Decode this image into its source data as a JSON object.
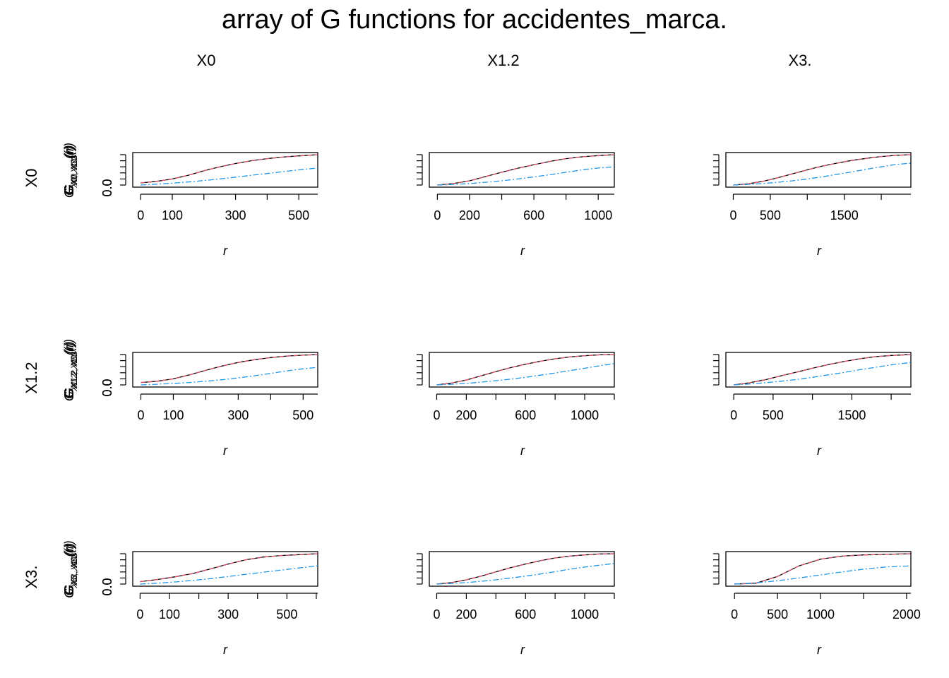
{
  "chart_data": {
    "type": "line",
    "title": "array of G functions for accidentes_marca.",
    "column_labels": [
      "X0",
      "X1.2",
      "X3."
    ],
    "row_labels": [
      "X0",
      "X1.2",
      "X3."
    ],
    "xlabel": "r",
    "y_tick_label": "0.0",
    "ylim": [
      0,
      1
    ],
    "series_styles": [
      {
        "key": "obs",
        "color": "#000000",
        "dash": ""
      },
      {
        "key": "theo",
        "color": "#df536b",
        "dash": "6,4"
      },
      {
        "key": "other",
        "color": "#2297e6",
        "dash": "8,3,2,3"
      }
    ],
    "panels": [
      {
        "row": 0,
        "col": 0,
        "ylabel_sub": "X0, X0",
        "xlim": [
          -25,
          560
        ],
        "xticks": [
          0,
          100,
          300,
          500
        ],
        "xtick_labels": [
          "0",
          "100",
          "300",
          "500"
        ],
        "x": [
          0,
          50,
          100,
          150,
          200,
          250,
          300,
          350,
          400,
          450,
          500,
          560
        ],
        "obs": [
          0.07,
          0.12,
          0.2,
          0.32,
          0.47,
          0.6,
          0.71,
          0.8,
          0.87,
          0.92,
          0.96,
          1.0
        ],
        "other": [
          0.0,
          0.03,
          0.06,
          0.1,
          0.15,
          0.2,
          0.26,
          0.32,
          0.38,
          0.44,
          0.5,
          0.56
        ]
      },
      {
        "row": 0,
        "col": 1,
        "ylabel_sub": "X0, X1.2",
        "xlim": [
          -50,
          1100
        ],
        "xticks": [
          0,
          200,
          600,
          1000
        ],
        "xtick_labels": [
          "0",
          "200",
          "600",
          "1000"
        ],
        "x": [
          0,
          100,
          200,
          300,
          400,
          500,
          600,
          700,
          800,
          900,
          1000,
          1100
        ],
        "obs": [
          0.0,
          0.05,
          0.14,
          0.28,
          0.42,
          0.55,
          0.67,
          0.78,
          0.87,
          0.93,
          0.97,
          1.0
        ],
        "other": [
          0.0,
          0.02,
          0.05,
          0.09,
          0.14,
          0.2,
          0.27,
          0.34,
          0.42,
          0.5,
          0.56,
          0.6
        ]
      },
      {
        "row": 0,
        "col": 2,
        "ylabel_sub": "X0, X3.",
        "xlim": [
          -100,
          2400
        ],
        "xticks": [
          0,
          500,
          1500
        ],
        "xtick_labels": [
          "0",
          "500",
          "1500"
        ],
        "x": [
          0,
          200,
          400,
          600,
          800,
          1000,
          1200,
          1400,
          1600,
          1800,
          2000,
          2200,
          2400
        ],
        "obs": [
          0.0,
          0.04,
          0.12,
          0.24,
          0.37,
          0.5,
          0.62,
          0.72,
          0.81,
          0.88,
          0.94,
          0.98,
          1.0
        ],
        "other": [
          0.0,
          0.02,
          0.05,
          0.09,
          0.14,
          0.2,
          0.27,
          0.35,
          0.43,
          0.52,
          0.6,
          0.68,
          0.72
        ]
      },
      {
        "row": 1,
        "col": 0,
        "ylabel_sub": "X1.2, X0",
        "xlim": [
          -25,
          545
        ],
        "xticks": [
          0,
          100,
          300,
          500
        ],
        "xtick_labels": [
          "0",
          "100",
          "300",
          "500"
        ],
        "x": [
          0,
          50,
          100,
          150,
          200,
          250,
          300,
          350,
          400,
          450,
          500,
          545
        ],
        "obs": [
          0.08,
          0.12,
          0.2,
          0.33,
          0.48,
          0.62,
          0.74,
          0.83,
          0.9,
          0.95,
          0.98,
          1.0
        ],
        "other": [
          0.0,
          0.02,
          0.05,
          0.08,
          0.12,
          0.17,
          0.23,
          0.3,
          0.38,
          0.46,
          0.53,
          0.58
        ]
      },
      {
        "row": 1,
        "col": 1,
        "ylabel_sub": "X1.2, X1.2",
        "xlim": [
          -50,
          1200
        ],
        "xticks": [
          0,
          200,
          600,
          1000
        ],
        "xtick_labels": [
          "0",
          "200",
          "600",
          "1000"
        ],
        "x": [
          0,
          100,
          200,
          300,
          400,
          500,
          600,
          700,
          800,
          900,
          1000,
          1100,
          1200
        ],
        "obs": [
          0.0,
          0.06,
          0.16,
          0.3,
          0.44,
          0.57,
          0.68,
          0.78,
          0.86,
          0.92,
          0.96,
          0.99,
          1.0
        ],
        "other": [
          0.0,
          0.02,
          0.05,
          0.09,
          0.14,
          0.19,
          0.25,
          0.32,
          0.39,
          0.47,
          0.55,
          0.63,
          0.7
        ]
      },
      {
        "row": 1,
        "col": 2,
        "ylabel_sub": "X1.2, X3.",
        "xlim": [
          -100,
          2250
        ],
        "xticks": [
          0,
          500,
          1500
        ],
        "xtick_labels": [
          "0",
          "500",
          "1500"
        ],
        "x": [
          0,
          200,
          400,
          600,
          800,
          1000,
          1200,
          1400,
          1600,
          1800,
          2000,
          2250
        ],
        "obs": [
          0.0,
          0.07,
          0.17,
          0.3,
          0.42,
          0.55,
          0.67,
          0.77,
          0.86,
          0.93,
          0.97,
          1.0
        ],
        "other": [
          0.0,
          0.03,
          0.07,
          0.12,
          0.18,
          0.25,
          0.33,
          0.41,
          0.5,
          0.58,
          0.66,
          0.74
        ]
      },
      {
        "row": 2,
        "col": 0,
        "ylabel_sub": "X3., X0",
        "xlim": [
          -25,
          605
        ],
        "xticks": [
          0,
          100,
          300,
          500
        ],
        "xtick_labels": [
          "0",
          "100",
          "300",
          "500"
        ],
        "x": [
          0,
          60,
          120,
          180,
          240,
          300,
          360,
          420,
          480,
          540,
          605
        ],
        "obs": [
          0.08,
          0.15,
          0.24,
          0.35,
          0.5,
          0.66,
          0.8,
          0.89,
          0.94,
          0.97,
          1.0
        ],
        "other": [
          0.0,
          0.03,
          0.07,
          0.12,
          0.18,
          0.25,
          0.32,
          0.39,
          0.46,
          0.53,
          0.6
        ]
      },
      {
        "row": 2,
        "col": 1,
        "ylabel_sub": "X3., X1.2",
        "xlim": [
          -50,
          1200
        ],
        "xticks": [
          0,
          200,
          600,
          1000
        ],
        "xtick_labels": [
          "0",
          "200",
          "600",
          "1000"
        ],
        "x": [
          0,
          100,
          200,
          300,
          400,
          500,
          600,
          700,
          800,
          900,
          1000,
          1100,
          1200
        ],
        "obs": [
          0.0,
          0.05,
          0.14,
          0.26,
          0.4,
          0.54,
          0.66,
          0.77,
          0.86,
          0.92,
          0.96,
          0.99,
          1.0
        ],
        "other": [
          0.0,
          0.02,
          0.05,
          0.09,
          0.14,
          0.2,
          0.26,
          0.33,
          0.41,
          0.49,
          0.56,
          0.62,
          0.68
        ]
      },
      {
        "row": 2,
        "col": 2,
        "ylabel_sub": "X3., X3.",
        "xlim": [
          -100,
          2050
        ],
        "xticks": [
          0,
          500,
          1000,
          2000
        ],
        "xtick_labels": [
          "0",
          "500",
          "1000",
          "2000"
        ],
        "x": [
          0,
          250,
          500,
          750,
          1000,
          1250,
          1500,
          1750,
          2050
        ],
        "obs": [
          0.0,
          0.03,
          0.25,
          0.6,
          0.82,
          0.92,
          0.96,
          0.98,
          1.0
        ],
        "other": [
          0.0,
          0.04,
          0.11,
          0.2,
          0.3,
          0.4,
          0.49,
          0.56,
          0.6
        ]
      }
    ]
  }
}
